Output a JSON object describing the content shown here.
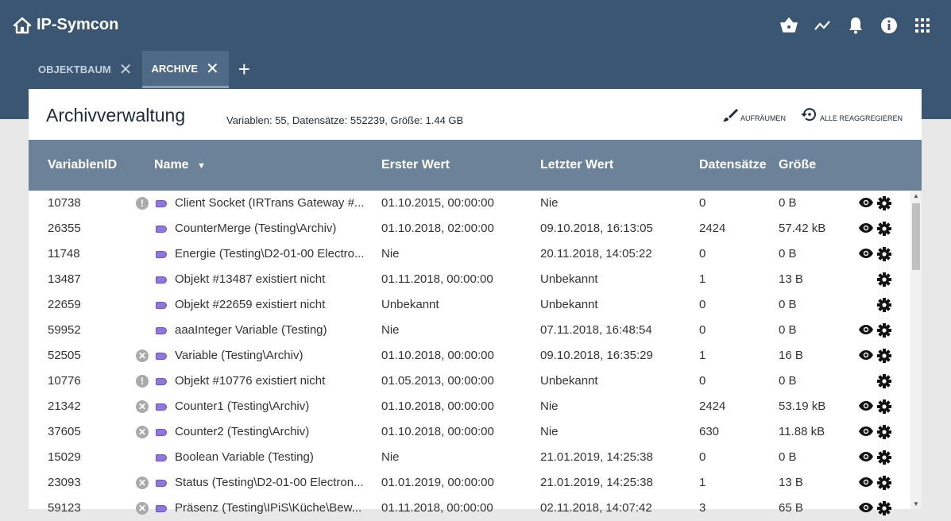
{
  "app": {
    "title": "IP-Symcon",
    "icons": [
      "basket-icon",
      "chart-line-icon",
      "bell-icon",
      "info-icon",
      "apps-grid-icon"
    ]
  },
  "tabs": [
    {
      "label": "OBJEKTBAUM",
      "active": false
    },
    {
      "label": "ARCHIVE",
      "active": true
    }
  ],
  "page": {
    "title": "Archivverwaltung",
    "stats": "Variablen: 55, Datensätze: 552239, Größe: 1.44 GB",
    "cleanup_label": "AUFRÄUMEN",
    "reaggregate_label": "ALLE REAGGREGIEREN"
  },
  "columns": [
    "VariablenID",
    "Name",
    "Erster Wert",
    "Letzter Wert",
    "Datensätze",
    "Größe"
  ],
  "sort": {
    "column": "Name",
    "direction": "desc-arrow"
  },
  "colors": {
    "header": "#3a5673",
    "table_header": "#6b8299",
    "tag": "#8e7ad6"
  },
  "rows": [
    {
      "id": "10738",
      "status": "warning",
      "name": "Client Socket (IRTrans Gateway #...",
      "first": "01.10.2015, 00:00:00",
      "last": "Nie",
      "records": "0",
      "size": "0 B",
      "view": true
    },
    {
      "id": "26355",
      "status": "",
      "name": "CounterMerge (Testing\\Archiv)",
      "first": "01.10.2018, 02:00:00",
      "last": "09.10.2018, 16:13:05",
      "records": "2424",
      "size": "57.42 kB",
      "view": true
    },
    {
      "id": "11748",
      "status": "",
      "name": "Energie (Testing\\D2-01-00 Electro...",
      "first": "Nie",
      "last": "20.11.2018, 14:05:22",
      "records": "0",
      "size": "0 B",
      "view": true
    },
    {
      "id": "13487",
      "status": "",
      "name": "Objekt #13487 existiert nicht",
      "first": "01.11.2018, 00:00:00",
      "last": "Unbekannt",
      "records": "1",
      "size": "13 B",
      "view": false
    },
    {
      "id": "22659",
      "status": "",
      "name": "Objekt #22659 existiert nicht",
      "first": "Unbekannt",
      "last": "Unbekannt",
      "records": "0",
      "size": "0 B",
      "view": false
    },
    {
      "id": "59952",
      "status": "",
      "name": "aaaInteger Variable (Testing)",
      "first": "Nie",
      "last": "07.11.2018, 16:48:54",
      "records": "0",
      "size": "0 B",
      "view": true
    },
    {
      "id": "52505",
      "status": "error",
      "name": "Variable (Testing\\Archiv)",
      "first": "01.10.2018, 00:00:00",
      "last": "09.10.2018, 16:35:29",
      "records": "1",
      "size": "16 B",
      "view": true
    },
    {
      "id": "10776",
      "status": "warning",
      "name": "Objekt #10776 existiert nicht",
      "first": "01.05.2013, 00:00:00",
      "last": "Unbekannt",
      "records": "0",
      "size": "0 B",
      "view": false
    },
    {
      "id": "21342",
      "status": "error",
      "name": "Counter1 (Testing\\Archiv)",
      "first": "01.10.2018, 00:00:00",
      "last": "Nie",
      "records": "2424",
      "size": "53.19 kB",
      "view": true
    },
    {
      "id": "37605",
      "status": "error",
      "name": "Counter2 (Testing\\Archiv)",
      "first": "01.10.2018, 00:00:00",
      "last": "Nie",
      "records": "630",
      "size": "11.88 kB",
      "view": true
    },
    {
      "id": "15029",
      "status": "",
      "name": "Boolean Variable (Testing)",
      "first": "Nie",
      "last": "21.01.2019, 14:25:38",
      "records": "0",
      "size": "0 B",
      "view": true
    },
    {
      "id": "23093",
      "status": "error",
      "name": "Status (Testing\\D2-01-00 Electron...",
      "first": "01.01.2019, 00:00:00",
      "last": "21.01.2019, 14:25:38",
      "records": "1",
      "size": "13 B",
      "view": true
    },
    {
      "id": "59123",
      "status": "error",
      "name": "Präsenz (Testing\\IPiS\\Küche\\Bew...",
      "first": "01.11.2018, 00:00:00",
      "last": "02.11.2018, 14:07:42",
      "records": "3",
      "size": "65 B",
      "view": true
    }
  ]
}
